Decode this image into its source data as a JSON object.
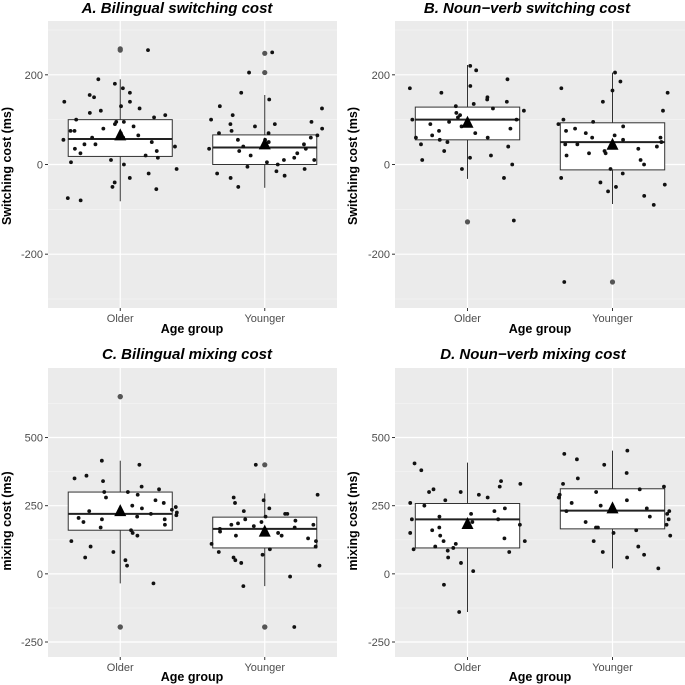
{
  "chart_data": [
    {
      "id": "A",
      "type": "box-jitter",
      "title": "A. Bilingual switching cost",
      "xlabel": "Age group",
      "ylabel": "Switching cost (ms)",
      "ylim": [
        -320,
        320
      ],
      "yticks": [
        -200,
        0,
        200
      ],
      "categories": [
        "Older",
        "Younger"
      ],
      "boxes": [
        {
          "q1": 18,
          "median": 57,
          "q3": 100,
          "whisker_low": -82,
          "whisker_high": 190,
          "mean": 65
        },
        {
          "q1": 0,
          "median": 38,
          "q3": 66,
          "whisker_low": -52,
          "whisker_high": 155,
          "mean": 45
        }
      ],
      "outliers": [
        [
          258,
          255
        ],
        [
          248,
          205
        ]
      ],
      "points": [
        [
          255,
          5,
          10,
          15,
          25,
          30,
          35,
          40,
          45,
          50,
          55,
          60,
          65,
          70,
          75,
          80,
          85,
          90,
          95,
          100,
          105,
          110,
          120,
          130,
          140,
          150,
          160,
          170,
          180,
          190,
          -10,
          -20,
          -30,
          -40,
          -50,
          -55,
          -75,
          -80,
          0,
          20,
          45,
          60,
          75,
          95,
          115,
          125,
          140,
          155
        ],
        [
          250,
          205,
          160,
          145,
          130,
          100,
          95,
          90,
          85,
          80,
          75,
          70,
          65,
          60,
          55,
          50,
          45,
          40,
          35,
          30,
          25,
          20,
          15,
          10,
          5,
          0,
          -5,
          -10,
          -15,
          -20,
          -25,
          -30,
          -50,
          10,
          35,
          55,
          70,
          90,
          110,
          125
        ]
      ]
    },
    {
      "id": "B",
      "type": "box-jitter",
      "title": "B. Noun−verb switching cost",
      "xlabel": "Age group",
      "ylabel": "Switching cost (ms)",
      "ylim": [
        -320,
        320
      ],
      "yticks": [
        -200,
        0,
        200
      ],
      "categories": [
        "Older",
        "Younger"
      ],
      "boxes": [
        {
          "q1": 55,
          "median": 100,
          "q3": 128,
          "whisker_low": -32,
          "whisker_high": 222,
          "mean": 93
        },
        {
          "q1": -12,
          "median": 50,
          "q3": 93,
          "whisker_low": -88,
          "whisker_high": 205,
          "mean": 44
        }
      ],
      "outliers": [
        [
          -128
        ],
        [
          -262
        ]
      ],
      "points": [
        [
          220,
          210,
          190,
          170,
          150,
          145,
          140,
          135,
          130,
          125,
          120,
          115,
          110,
          105,
          100,
          95,
          90,
          85,
          80,
          75,
          70,
          65,
          60,
          55,
          50,
          45,
          40,
          30,
          20,
          15,
          10,
          0,
          -10,
          -30,
          -125,
          175,
          160,
          100,
          60
        ],
        [
          205,
          185,
          170,
          165,
          160,
          140,
          120,
          100,
          95,
          90,
          85,
          80,
          75,
          70,
          65,
          60,
          55,
          50,
          45,
          40,
          35,
          30,
          25,
          20,
          10,
          0,
          -10,
          -20,
          -30,
          -40,
          -45,
          -50,
          -60,
          -70,
          -90,
          -262,
          60,
          45,
          25
        ]
      ]
    },
    {
      "id": "C",
      "type": "box-jitter",
      "title": "C. Bilingual mixing cost",
      "xlabel": "Age group",
      "ylabel": "mixing cost (ms)",
      "ylim": [
        -305,
        755
      ],
      "yticks": [
        -250,
        0,
        250,
        500
      ],
      "categories": [
        "Older",
        "Younger"
      ],
      "boxes": [
        {
          "q1": 160,
          "median": 220,
          "q3": 300,
          "whisker_low": -35,
          "whisker_high": 415,
          "mean": 230
        },
        {
          "q1": 95,
          "median": 165,
          "q3": 208,
          "whisker_low": -45,
          "whisker_high": 295,
          "mean": 155
        }
      ],
      "outliers": [
        [
          650,
          650,
          -195,
          -195
        ],
        [
          400,
          -195,
          -195
        ]
      ],
      "points": [
        [
          415,
          400,
          360,
          340,
          320,
          310,
          300,
          290,
          280,
          270,
          260,
          250,
          245,
          240,
          235,
          230,
          225,
          220,
          215,
          210,
          205,
          200,
          190,
          180,
          170,
          160,
          150,
          140,
          120,
          100,
          80,
          60,
          50,
          30,
          -35,
          350,
          300,
          200
        ],
        [
          400,
          290,
          270,
          260,
          240,
          230,
          220,
          210,
          200,
          195,
          190,
          185,
          180,
          175,
          170,
          165,
          160,
          155,
          150,
          140,
          130,
          120,
          110,
          100,
          90,
          80,
          70,
          60,
          50,
          40,
          30,
          -10,
          -45,
          -195,
          280,
          220,
          180,
          140
        ]
      ]
    },
    {
      "id": "D",
      "type": "box-jitter",
      "title": "D. Noun−verb mixing cost",
      "xlabel": "Age group",
      "ylabel": "mixing cost (ms)",
      "ylim": [
        -305,
        755
      ],
      "yticks": [
        -250,
        0,
        250,
        500
      ],
      "categories": [
        "Older",
        "Younger"
      ],
      "boxes": [
        {
          "q1": 95,
          "median": 200,
          "q3": 258,
          "whisker_low": -140,
          "whisker_high": 408,
          "mean": 183
        },
        {
          "q1": 165,
          "median": 232,
          "q3": 312,
          "whisker_low": 20,
          "whisker_high": 452,
          "mean": 240
        }
      ],
      "outliers": [
        [],
        []
      ],
      "points": [
        [
          405,
          380,
          340,
          330,
          320,
          310,
          300,
          290,
          280,
          270,
          260,
          250,
          240,
          230,
          220,
          210,
          200,
          190,
          180,
          170,
          160,
          150,
          140,
          130,
          120,
          110,
          100,
          95,
          90,
          85,
          80,
          60,
          40,
          10,
          -40,
          -140,
          300,
          200,
          120
        ],
        [
          452,
          440,
          420,
          400,
          370,
          350,
          330,
          320,
          310,
          300,
          290,
          280,
          270,
          260,
          250,
          240,
          230,
          220,
          210,
          200,
          190,
          180,
          170,
          160,
          150,
          140,
          120,
          100,
          80,
          70,
          60,
          20,
          280,
          230,
          170
        ]
      ]
    }
  ]
}
